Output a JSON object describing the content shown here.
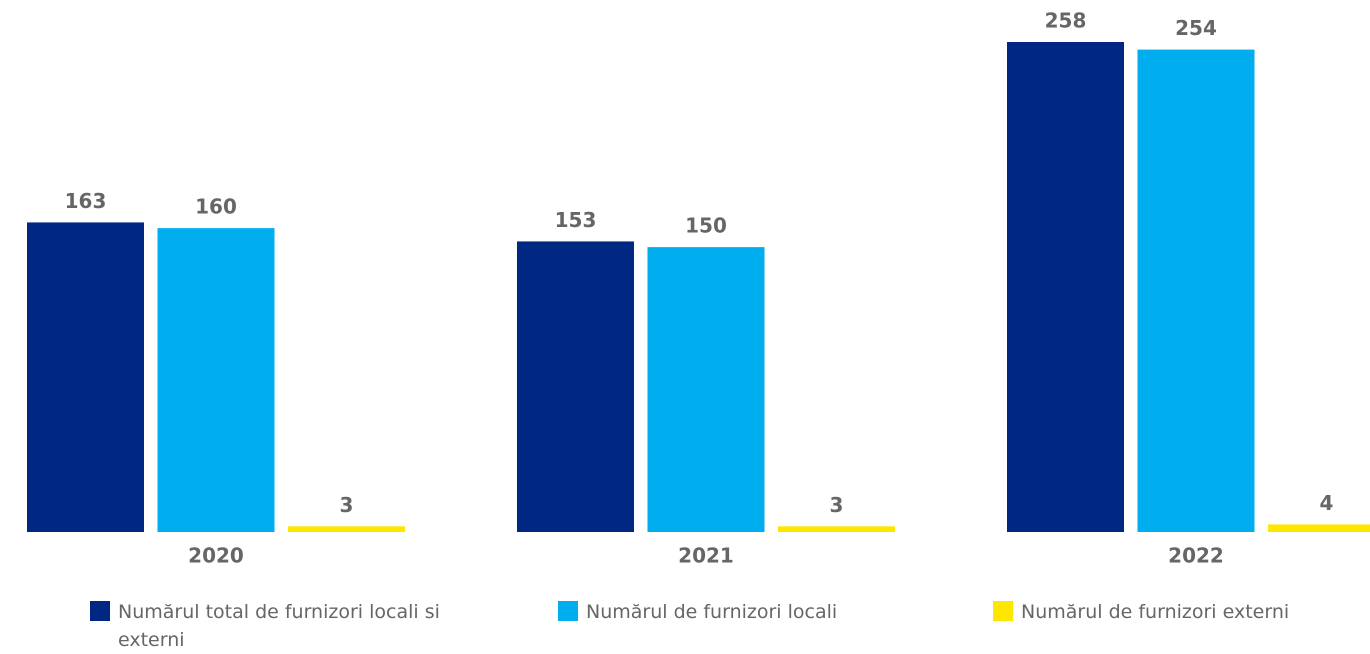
{
  "chart_data": {
    "type": "bar",
    "categories": [
      "2020",
      "2021",
      "2022"
    ],
    "series": [
      {
        "name": "Numărul total de furnizori locali si externi",
        "color": "#002882",
        "values": [
          163,
          153,
          258
        ]
      },
      {
        "name": "Numărul de furnizori locali",
        "color": "#00aeef",
        "values": [
          160,
          150,
          254
        ]
      },
      {
        "name": "Numărul de furnizori externi",
        "color": "#ffe600",
        "values": [
          3,
          3,
          4
        ]
      }
    ]
  }
}
